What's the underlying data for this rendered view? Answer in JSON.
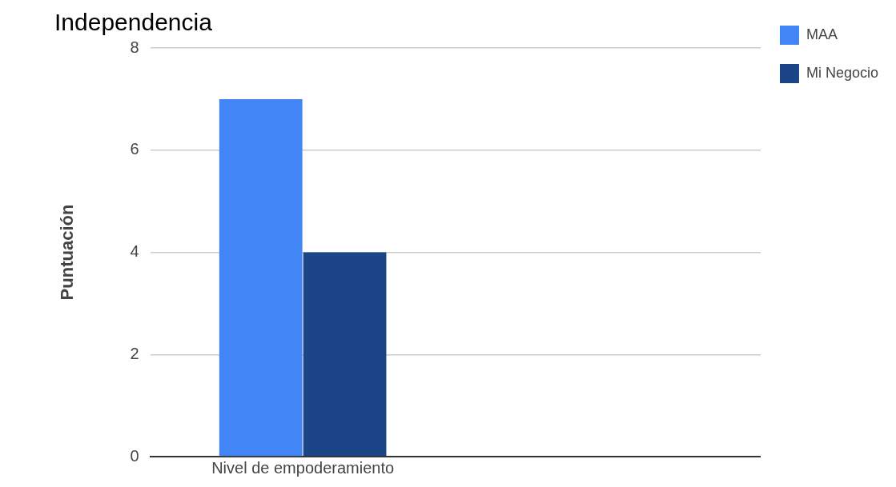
{
  "chart_data": {
    "type": "bar",
    "title": "Independencia",
    "ylabel": "Puntuación",
    "categories": [
      "Nivel de empoderamiento",
      null
    ],
    "series": [
      {
        "name": "MAA",
        "color": "#4285f4",
        "values": [
          7,
          null
        ]
      },
      {
        "name": "Mi Negocio",
        "color": "#1c4587",
        "values": [
          4,
          null
        ]
      }
    ],
    "ylim": [
      0,
      8
    ],
    "yticks": [
      0,
      2,
      4,
      6,
      8
    ],
    "grid": "y",
    "legend": "top right"
  }
}
